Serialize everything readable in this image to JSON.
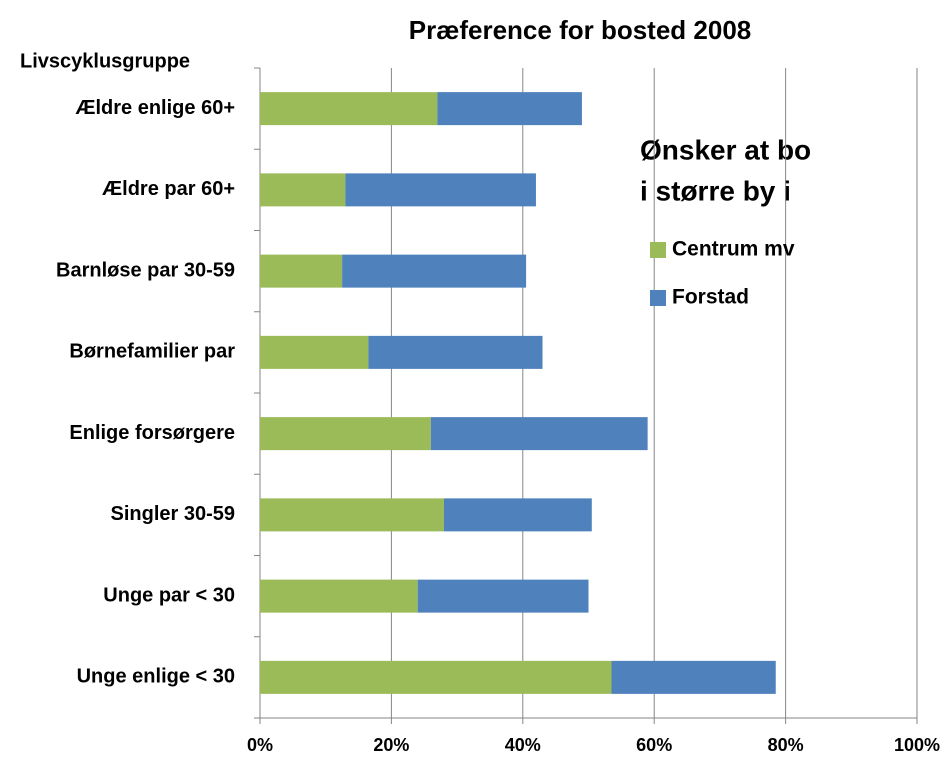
{
  "chart_data": {
    "type": "stacked-bar-horizontal",
    "title": "Præference for bosted 2008",
    "y_axis_label": "Livscyklusgruppe",
    "legend_title": [
      "Ønsker at bo",
      "i større by i"
    ],
    "categories": [
      "Ældre enlige 60+",
      "Ældre par 60+",
      "Barnløse par 30-59",
      "Børnefamilier par",
      "Enlige forsørgere",
      "Singler 30-59",
      "Unge par < 30",
      "Unge enlige < 30"
    ],
    "series": [
      {
        "name": "Centrum mv",
        "color": "#9bbb59",
        "values": [
          27,
          13,
          12.5,
          16.5,
          26,
          28,
          24,
          53.5
        ]
      },
      {
        "name": "Forstad",
        "color": "#4f81bd",
        "values": [
          22,
          29,
          28,
          26.5,
          33,
          22.5,
          26,
          25
        ]
      }
    ],
    "xlim": [
      0,
      100
    ],
    "xticks": [
      {
        "value": 0,
        "label": "0%"
      },
      {
        "value": 20,
        "label": "20%"
      },
      {
        "value": 40,
        "label": "40%"
      },
      {
        "value": 60,
        "label": "60%"
      },
      {
        "value": 80,
        "label": "80%"
      },
      {
        "value": 100,
        "label": "100%"
      }
    ],
    "grid": true
  }
}
